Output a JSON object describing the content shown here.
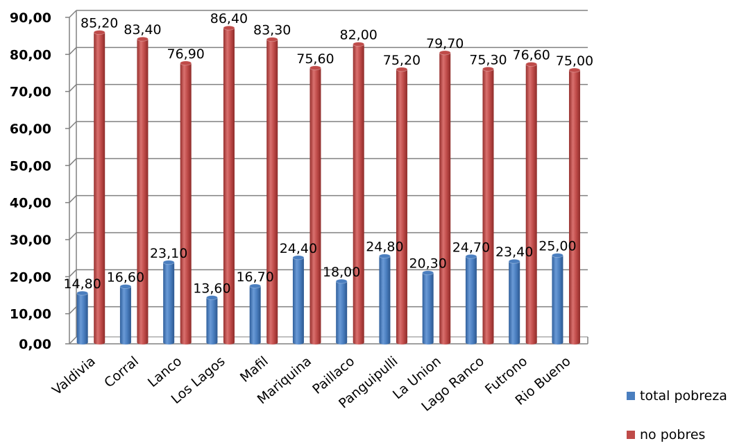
{
  "chart_data": {
    "type": "bar",
    "categories": [
      "Valdivia",
      "Corral",
      "Lanco",
      "Los Lagos",
      "Mafil",
      "Mariquina",
      "Paillaco",
      "Panguipulli",
      "La Union",
      "Lago Ranco",
      "Futrono",
      "Rio Bueno"
    ],
    "series": [
      {
        "name": "total pobreza",
        "color": "#4a7ebf",
        "values": [
          14.8,
          16.6,
          23.1,
          13.6,
          16.7,
          24.4,
          18.0,
          24.8,
          20.3,
          24.7,
          23.4,
          25.0
        ],
        "labels": [
          "14,80",
          "16,60",
          "23,10",
          "13,60",
          "16,70",
          "24,40",
          "18,00",
          "24,80",
          "20,30",
          "24,70",
          "23,40",
          "25,00"
        ]
      },
      {
        "name": "no pobres",
        "color": "#bf4b49",
        "values": [
          85.2,
          83.4,
          76.9,
          86.4,
          83.3,
          75.6,
          82.0,
          75.2,
          79.7,
          75.3,
          76.6,
          75.0
        ],
        "labels": [
          "85,20",
          "83,40",
          "76,90",
          "86,40",
          "83,30",
          "75,60",
          "82,00",
          "75,20",
          "79,70",
          "75,30",
          "76,60",
          "75,00"
        ]
      }
    ],
    "ylim": [
      0,
      90
    ],
    "yticks": [
      "0,00",
      "10,00",
      "20,00",
      "30,00",
      "40,00",
      "50,00",
      "60,00",
      "70,00",
      "80,00",
      "90,00"
    ],
    "title": "",
    "xlabel": "",
    "ylabel": "",
    "grid": true,
    "legend": "right"
  }
}
